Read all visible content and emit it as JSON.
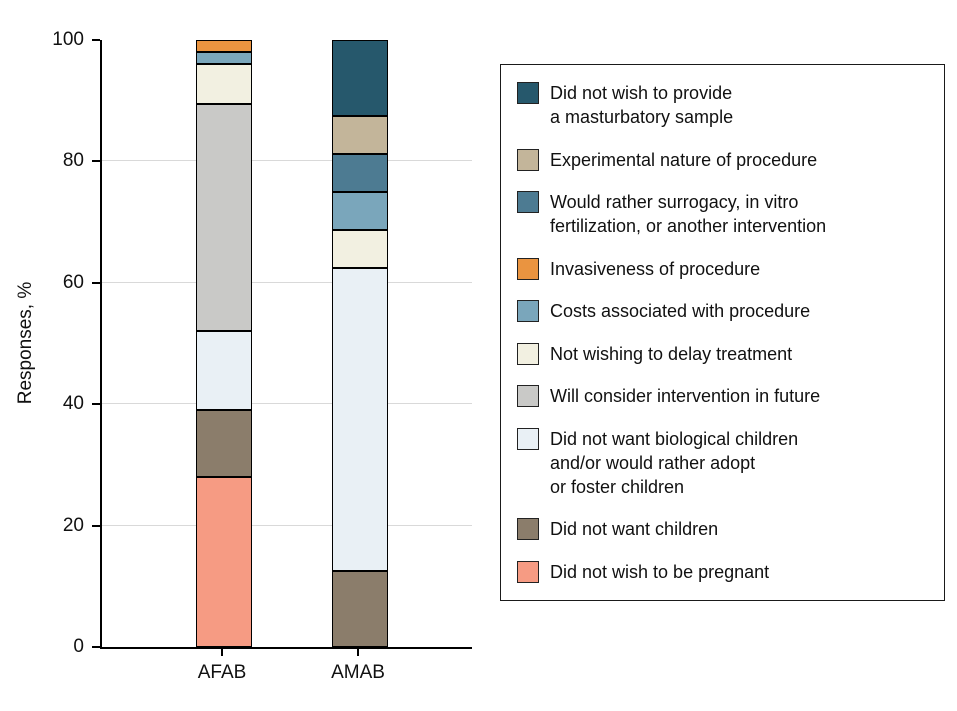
{
  "figure": {
    "background": "#ffffff"
  },
  "chart_data": {
    "type": "bar",
    "stacked": true,
    "title": "",
    "xlabel": "",
    "ylabel": "Responses, %",
    "ylim": [
      0,
      100
    ],
    "yticks": [
      0,
      20,
      40,
      60,
      80,
      100
    ],
    "grid": true,
    "legend_position": "right",
    "categories": [
      "AFAB",
      "AMAB"
    ],
    "stack_order": "series listed top-of-stack first; bars stack in reverse order from bottom",
    "series": [
      {
        "name": "Did not wish to provide a masturbatory sample",
        "label": "Did not wish to provide\na masturbatory sample",
        "color": "#26586c",
        "values": [
          0,
          12.5
        ]
      },
      {
        "name": "Experimental nature of procedure",
        "label": "Experimental nature of procedure",
        "color": "#c3b59a",
        "values": [
          0,
          6.25
        ]
      },
      {
        "name": "Would rather surrogacy, in vitro fertilization, or another intervention",
        "label": "Would rather surrogacy, in vitro\nfertilization, or another intervention",
        "color": "#4d7b92",
        "values": [
          0,
          6.25
        ]
      },
      {
        "name": "Invasiveness of procedure",
        "label": "Invasiveness of procedure",
        "color": "#ea9440",
        "values": [
          2,
          0
        ]
      },
      {
        "name": "Costs associated with procedure",
        "label": "Costs associated with procedure",
        "color": "#7aa6bb",
        "values": [
          2,
          6.25
        ]
      },
      {
        "name": "Not wishing to delay treatment",
        "label": "Not wishing to delay treatment",
        "color": "#f2f0e1",
        "values": [
          6.5,
          6.25
        ]
      },
      {
        "name": "Will consider intervention in future",
        "label": "Will consider intervention in future",
        "color": "#c9c9c7",
        "values": [
          37.5,
          0
        ]
      },
      {
        "name": "Did not want biological children and/or would rather adopt or foster children",
        "label": "Did not want biological children\nand/or would rather adopt\nor foster children",
        "color": "#e9f0f5",
        "values": [
          13,
          50
        ]
      },
      {
        "name": "Did not want children",
        "label": "Did not want children",
        "color": "#8b7d6b",
        "values": [
          11,
          12.5
        ]
      },
      {
        "name": "Did not wish to be pregnant",
        "label": "Did not wish to be pregnant",
        "color": "#f69b83",
        "values": [
          28,
          0
        ]
      }
    ]
  }
}
